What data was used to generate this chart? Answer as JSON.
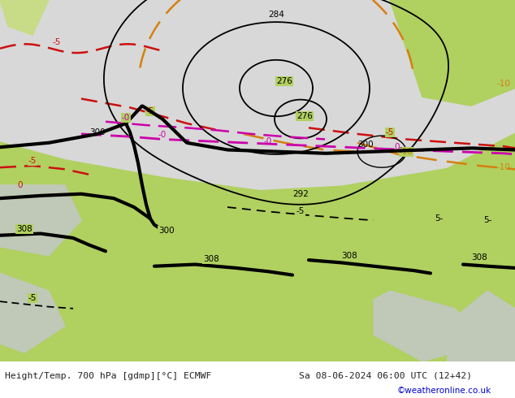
{
  "title_left": "Height/Temp. 700 hPa [gdmp][°C] ECMWF",
  "title_right": "Sa 08-06-2024 06:00 UTC (12+42)",
  "credit": "©weatheronline.co.uk",
  "bg_gray": "#d8d8d8",
  "bg_green": "#b0d060",
  "bg_green2": "#c8dc88",
  "land_gray": "#c0c8b8",
  "col_black": "#000000",
  "col_orange": "#d48010",
  "col_red": "#cc1010",
  "col_magenta": "#cc00aa",
  "col_blue": "#0000cc",
  "figwidth": 6.34,
  "figheight": 4.9
}
